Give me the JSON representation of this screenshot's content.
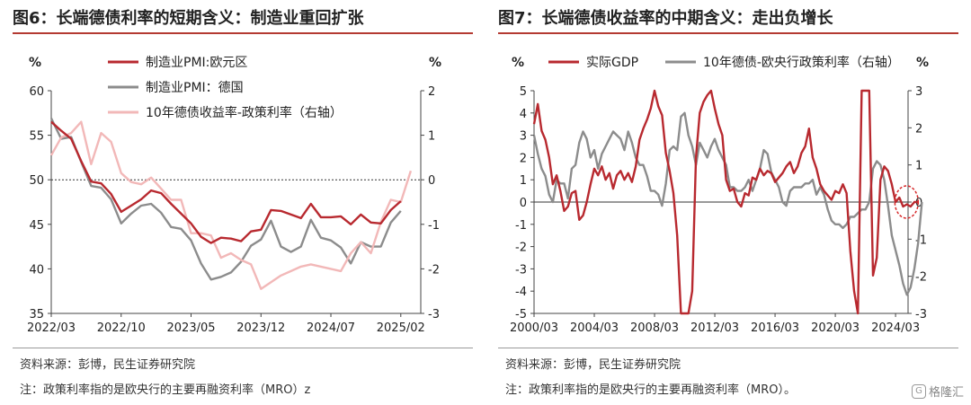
{
  "figures": [
    {
      "title": "图6：长端德债利率的短期含义：制造业重回扩张",
      "source": "资料来源：彭博，民生证券研究院",
      "note": "注：政策利率指的是欧央行的主要再融资利率（MRO）z"
    },
    {
      "title": "图7：长端德债收益率的中期含义：走出负增长",
      "source": "资料来源：彭博，民生证券研究院",
      "note": "注：政策利率指的是欧央行的主要再融资利率（MRO）。"
    }
  ],
  "watermark": {
    "logo": "G",
    "text": "格隆汇"
  },
  "chart_data": [
    {
      "type": "line",
      "left_unit": "%",
      "right_unit": "%",
      "ylim_left": [
        35,
        60
      ],
      "yticks_left": [
        35,
        40,
        45,
        50,
        55,
        60
      ],
      "ylim_right": [
        -3,
        2
      ],
      "yticks_right": [
        -3,
        -2,
        -1,
        0,
        1,
        2
      ],
      "x_range": [
        0,
        37
      ],
      "x_ticks": [
        {
          "pos": 0,
          "label": "2022/03"
        },
        {
          "pos": 7,
          "label": "2022/10"
        },
        {
          "pos": 14,
          "label": "2023/05"
        },
        {
          "pos": 21,
          "label": "2023/12"
        },
        {
          "pos": 28,
          "label": "2024/07"
        },
        {
          "pos": 35,
          "label": "2025/02"
        }
      ],
      "reference_line": {
        "axis": "right",
        "value": 0,
        "style": "dotted"
      },
      "legend_position": "top-left",
      "series": [
        {
          "name": "制造业PMI:欧元区",
          "axis": "left",
          "color": "#b8292f",
          "x_start": 0,
          "values": [
            56.5,
            55.5,
            54.6,
            52.1,
            49.8,
            49.6,
            48.4,
            46.4,
            47.1,
            47.8,
            48.8,
            48.5,
            47.3,
            46.2,
            45.1,
            43.6,
            42.9,
            43.5,
            43.4,
            43.1,
            44.2,
            44.4,
            46.6,
            46.5,
            46.1,
            45.7,
            47.3,
            45.8,
            45.8,
            45.9,
            45.0,
            46.1,
            45.2,
            45.1,
            46.6,
            47.6
          ]
        },
        {
          "name": "制造业PMI：德国",
          "axis": "left",
          "color": "#8c8c8c",
          "x_start": 0,
          "values": [
            56.9,
            54.6,
            54.8,
            52.0,
            49.3,
            49.1,
            47.8,
            45.1,
            46.2,
            47.1,
            47.3,
            46.3,
            44.7,
            44.5,
            43.2,
            40.6,
            38.8,
            39.1,
            39.6,
            40.8,
            42.6,
            43.3,
            45.4,
            42.5,
            41.9,
            42.5,
            45.5,
            43.5,
            43.2,
            42.4,
            40.6,
            43.0,
            42.5,
            42.5,
            45.2,
            46.5
          ]
        },
        {
          "name": "10年德债收益率-政策利率（右轴）",
          "axis": "right",
          "color": "#f2b8b8",
          "x_start": 0,
          "values": [
            0.55,
            0.95,
            1.05,
            1.3,
            0.35,
            1.05,
            0.85,
            0.15,
            -0.05,
            -0.1,
            0.05,
            -0.2,
            -0.45,
            -0.45,
            -1.2,
            -1.2,
            -1.25,
            -1.75,
            -1.65,
            -1.8,
            -1.9,
            -2.45,
            -2.3,
            -2.15,
            -2.05,
            -1.95,
            -1.9,
            -1.95,
            -2.0,
            -2.05,
            -1.65,
            -1.4,
            -1.65,
            -0.95,
            -0.45,
            -0.5,
            0.2
          ]
        }
      ]
    },
    {
      "type": "line",
      "left_unit": "%",
      "right_unit": "%",
      "ylim_left": [
        -5,
        5
      ],
      "yticks_left": [
        -5,
        -4,
        -3,
        -2,
        -1,
        0,
        1,
        2,
        3,
        4,
        5
      ],
      "ylim_right": [
        -3,
        3
      ],
      "yticks_right": [
        -3,
        -2,
        -1,
        0,
        1,
        2,
        3
      ],
      "x_range": [
        2000.17,
        2025.0
      ],
      "x_ticks": [
        {
          "pos": 2000.17,
          "label": "2000/03"
        },
        {
          "pos": 2004.17,
          "label": "2004/03"
        },
        {
          "pos": 2008.17,
          "label": "2008/03"
        },
        {
          "pos": 2012.17,
          "label": "2012/03"
        },
        {
          "pos": 2016.17,
          "label": "2016/03"
        },
        {
          "pos": 2020.17,
          "label": "2020/03"
        },
        {
          "pos": 2024.17,
          "label": "2024/03"
        }
      ],
      "reference_line": {
        "axis": "left",
        "value": 0,
        "style": "solid"
      },
      "annotations": [
        {
          "type": "dashed-ellipse",
          "color": "#d62728",
          "x": 2024.9,
          "y_left": 0
        }
      ],
      "legend_position": "top-center",
      "series": [
        {
          "name": "实际GDP",
          "axis": "left",
          "color": "#b8292f",
          "x_start": 2000.17,
          "x_step": 0.25,
          "values": [
            3.5,
            4.4,
            3.2,
            2.8,
            2.0,
            0.8,
            1.2,
            0.5,
            -0.4,
            -0.2,
            0.4,
            0.5,
            -0.8,
            -0.6,
            0.0,
            0.8,
            1.5,
            1.2,
            1.6,
            1.0,
            1.3,
            0.6,
            1.2,
            1.4,
            1.0,
            1.3,
            0.9,
            1.6,
            2.8,
            3.3,
            3.7,
            4.2,
            5.0,
            4.3,
            3.9,
            2.2,
            1.4,
            0.4,
            -1.5,
            -5.0,
            -6.5,
            -5.5,
            -4.0,
            2.0,
            4.0,
            4.5,
            4.8,
            5.0,
            4.2,
            3.5,
            3.0,
            1.0,
            0.5,
            0.6,
            0.0,
            -0.2,
            0.4,
            0.3,
            1.1,
            1.0,
            1.5,
            1.2,
            1.4,
            1.3,
            0.9,
            1.1,
            1.3,
            1.6,
            1.8,
            1.3,
            1.6,
            2.2,
            2.5,
            3.3,
            2.0,
            1.5,
            0.8,
            0.5,
            0.3,
            0.1,
            0.5,
            0.4,
            0.8,
            0.4,
            -2.2,
            -4.0,
            -7.5,
            5.0,
            5.0,
            5.0,
            -3.3,
            -2.5,
            1.0,
            1.6,
            1.4,
            0.8,
            0.0,
            0.2,
            -0.2,
            -0.1,
            -0.2,
            0.0,
            0.0
          ]
        },
        {
          "name": "10年德债-欧央行政策利率（右轴）",
          "axis": "right",
          "color": "#8c8c8c",
          "x_start": 2000.17,
          "x_step": 0.25,
          "values": [
            1.8,
            1.3,
            0.9,
            0.7,
            0.2,
            0.0,
            0.6,
            0.5,
            0.5,
            0.1,
            0.9,
            1.0,
            1.6,
            1.9,
            1.7,
            1.2,
            1.4,
            0.9,
            1.3,
            1.5,
            1.7,
            1.9,
            1.8,
            1.7,
            1.4,
            1.9,
            1.6,
            1.2,
            1.0,
            1.0,
            0.7,
            0.3,
            0.3,
            0.2,
            -0.1,
            0.5,
            1.4,
            1.5,
            1.4,
            2.3,
            2.4,
            1.8,
            1.5,
            1.0,
            1.6,
            1.4,
            1.2,
            1.5,
            1.7,
            1.4,
            1.2,
            1.0,
            0.4,
            0.4,
            0.3,
            0.3,
            0.4,
            0.6,
            0.3,
            0.6,
            0.9,
            1.4,
            1.3,
            0.8,
            0.6,
            0.4,
            0.0,
            -0.1,
            0.3,
            0.4,
            0.4,
            0.4,
            0.5,
            0.5,
            0.6,
            0.2,
            0.4,
            0.2,
            -0.2,
            -0.5,
            -0.6,
            -0.6,
            -0.7,
            -0.6,
            -0.4,
            -0.4,
            -0.3,
            -0.2,
            -0.2,
            0.0,
            0.9,
            1.1,
            1.0,
            0.6,
            -0.1,
            -0.9,
            -1.3,
            -1.7,
            -2.2,
            -2.5,
            -2.3,
            -1.8,
            -1.1,
            0.0
          ]
        }
      ]
    }
  ]
}
